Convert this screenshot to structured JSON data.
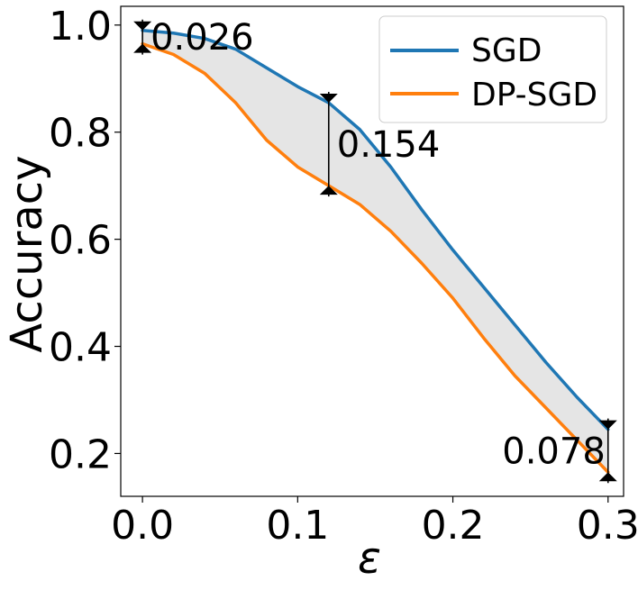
{
  "chart_data": {
    "type": "line",
    "xlabel": "ε",
    "ylabel": "Accuracy",
    "xlim": [
      -0.014,
      0.31
    ],
    "ylim": [
      0.12,
      1.035
    ],
    "xticks": [
      0.0,
      0.1,
      0.2,
      0.3
    ],
    "xtick_labels": [
      "0.0",
      "0.1",
      "0.2",
      "0.3"
    ],
    "yticks": [
      0.2,
      0.4,
      0.6,
      0.8,
      1.0
    ],
    "ytick_labels": [
      "0.2",
      "0.4",
      "0.6",
      "0.8",
      "1.0"
    ],
    "grid": false,
    "legend_position": "top-right",
    "shaded_gap": true,
    "colors": {
      "SGD": "#1f77b4",
      "DP-SGD": "#ff7f0e",
      "fill": "#e5e5e5"
    },
    "series": [
      {
        "name": "SGD",
        "x": [
          0.0,
          0.02,
          0.04,
          0.06,
          0.08,
          0.1,
          0.12,
          0.14,
          0.16,
          0.18,
          0.2,
          0.22,
          0.24,
          0.26,
          0.28,
          0.3
        ],
        "y": [
          0.99,
          0.985,
          0.975,
          0.955,
          0.92,
          0.885,
          0.855,
          0.805,
          0.735,
          0.655,
          0.58,
          0.51,
          0.44,
          0.37,
          0.305,
          0.245
        ]
      },
      {
        "name": "DP-SGD",
        "x": [
          0.0,
          0.02,
          0.04,
          0.06,
          0.08,
          0.1,
          0.12,
          0.14,
          0.16,
          0.18,
          0.2,
          0.22,
          0.24,
          0.26,
          0.28,
          0.3
        ],
        "y": [
          0.965,
          0.945,
          0.91,
          0.855,
          0.785,
          0.735,
          0.7,
          0.665,
          0.615,
          0.555,
          0.49,
          0.415,
          0.345,
          0.285,
          0.225,
          0.165
        ]
      }
    ],
    "annotations": [
      {
        "x": 0.0,
        "y_top": 0.99,
        "y_bottom": 0.965,
        "label": "0.026",
        "side": "right"
      },
      {
        "x": 0.12,
        "y_top": 0.855,
        "y_bottom": 0.7,
        "label": "0.154",
        "side": "right"
      },
      {
        "x": 0.3,
        "y_top": 0.245,
        "y_bottom": 0.165,
        "label": "0.078",
        "side": "left"
      }
    ]
  }
}
